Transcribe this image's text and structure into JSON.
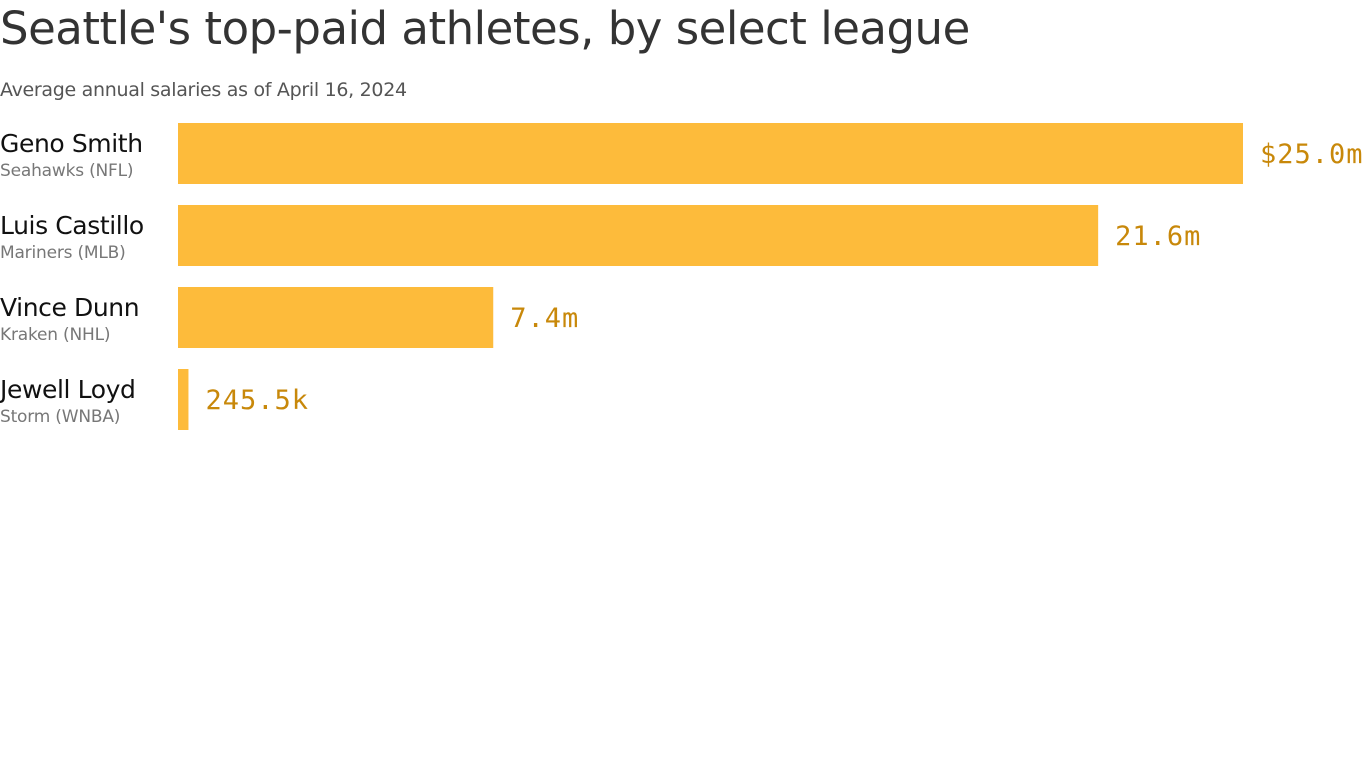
{
  "chart_data": {
    "type": "bar",
    "orientation": "horizontal",
    "title": "Seattle's top-paid athletes, by select league",
    "subtitle": "Average annual salaries as of April 16, 2024",
    "categories": [
      "Geno Smith",
      "Luis Castillo",
      "Vince Dunn",
      "Jewell Loyd"
    ],
    "sublabels": [
      "Seahawks (NFL)",
      "Mariners (MLB)",
      "Kraken (NHL)",
      "Storm (WNBA)"
    ],
    "values": [
      25000000,
      21600000,
      7400000,
      245500
    ],
    "value_labels": [
      "$25.0m",
      "21.6m",
      "7.4m",
      "245.5k"
    ],
    "xlim": [
      0,
      25000000
    ],
    "grid": false,
    "legend": "none",
    "colors": {
      "bar": "#fdbb3b",
      "value_text": "#c8880a",
      "title": "#333333",
      "subtitle": "#555555"
    }
  }
}
